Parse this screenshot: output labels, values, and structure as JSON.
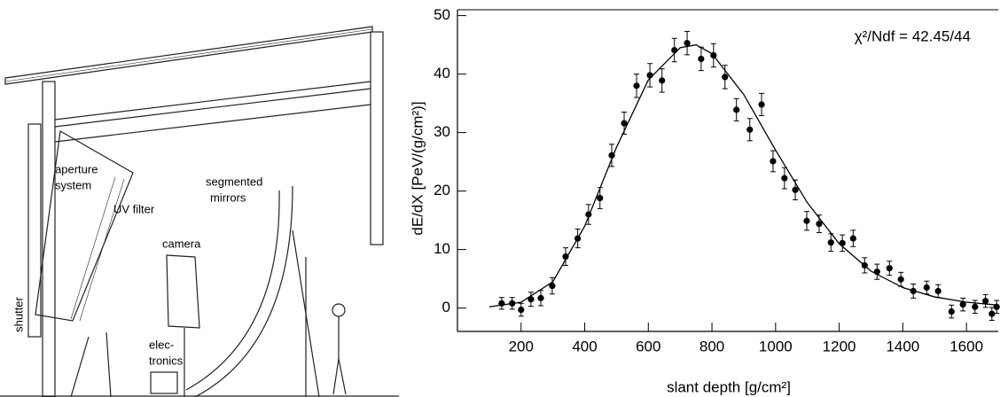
{
  "diagram": {
    "labels": {
      "aperture": [
        "aperture",
        "system"
      ],
      "uv_filter": [
        "UV filter"
      ],
      "mirrors": [
        "segmented",
        "mirrors"
      ],
      "camera": [
        "camera"
      ],
      "electronics": [
        "elec-",
        "tronics"
      ],
      "shutter": [
        "shutter"
      ]
    }
  },
  "chart_data": {
    "type": "scatter",
    "annotation": "χ²/Ndf = 42.45/44",
    "x_label": "slant depth [g/cm²]",
    "y_label": "dE/dX [PeV/(g/cm²)]",
    "xlim": [
      0,
      1700
    ],
    "xticks": [
      200,
      400,
      600,
      800,
      1000,
      1200,
      1400,
      1600
    ],
    "ylim": [
      -4,
      51
    ],
    "yticks": [
      0,
      10,
      20,
      30,
      40,
      50
    ],
    "color": "#000000",
    "x": [
      139,
      172,
      200,
      231,
      262,
      298,
      340,
      378,
      412,
      448,
      485,
      524,
      563,
      605,
      643,
      682,
      722,
      766,
      805,
      841,
      877,
      919,
      956,
      992,
      1028,
      1062,
      1098,
      1137,
      1174,
      1210,
      1244,
      1280,
      1319,
      1358,
      1394,
      1433,
      1475,
      1511,
      1553,
      1589,
      1627,
      1660,
      1680,
      1695
    ],
    "values": [
      0.8,
      0.8,
      -0.3,
      1.5,
      1.7,
      3.8,
      8.8,
      11.9,
      16.0,
      18.8,
      26.1,
      31.6,
      38.0,
      39.8,
      38.9,
      44.1,
      45.3,
      42.6,
      43.2,
      39.5,
      33.9,
      30.5,
      34.8,
      25.1,
      22.2,
      20.2,
      14.9,
      14.4,
      11.2,
      11.1,
      11.9,
      7.3,
      6.2,
      6.8,
      4.9,
      2.9,
      3.5,
      2.9,
      -0.6,
      0.6,
      0.2,
      1.2,
      -1.0,
      0.2
    ],
    "errors": [
      1.0,
      1.0,
      1.1,
      1.2,
      1.3,
      1.4,
      1.5,
      1.6,
      1.7,
      1.8,
      1.9,
      1.9,
      2.0,
      2.0,
      2.0,
      2.0,
      2.0,
      2.0,
      2.0,
      2.0,
      1.9,
      1.9,
      1.9,
      1.8,
      1.8,
      1.7,
      1.6,
      1.5,
      1.5,
      1.4,
      1.4,
      1.3,
      1.3,
      1.2,
      1.2,
      1.2,
      1.1,
      1.1,
      1.1,
      1.1,
      1.1,
      1.1,
      1.1,
      1.1
    ],
    "fit": {
      "x": [
        100,
        200,
        300,
        400,
        500,
        600,
        700,
        750,
        800,
        900,
        1000,
        1100,
        1200,
        1300,
        1400,
        1500,
        1600,
        1700
      ],
      "values": [
        0.2,
        1.0,
        4.5,
        14,
        27.5,
        39,
        44.5,
        45,
        43.5,
        36.5,
        27,
        18,
        11,
        6.3,
        3.5,
        1.9,
        1.0,
        0.5
      ]
    }
  }
}
